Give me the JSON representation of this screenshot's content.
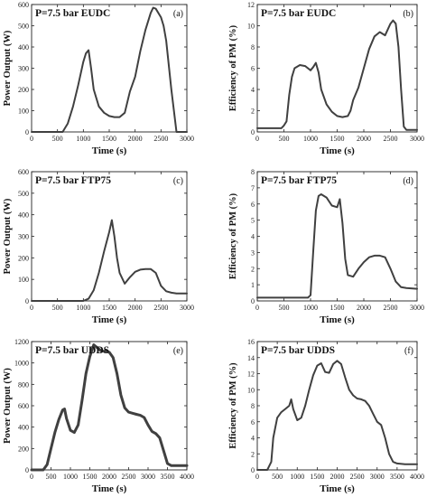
{
  "chart_data": [
    {
      "id": "a",
      "type": "line",
      "title": "P=7.5 bar EUDC",
      "panel_label": "(a)",
      "xlabel": "Time (s)",
      "ylabel": "Power Output (W)",
      "xlim": [
        0,
        3000
      ],
      "ylim": [
        0,
        600
      ],
      "xticks": [
        0,
        500,
        1000,
        1500,
        2000,
        2500,
        3000
      ],
      "yticks": [
        0,
        100,
        200,
        300,
        400,
        500,
        600
      ],
      "series": [
        {
          "x": [
            0,
            600,
            700,
            800,
            900,
            1000,
            1050,
            1100,
            1150,
            1200,
            1300,
            1400,
            1500,
            1600,
            1700,
            1800,
            1900,
            2000,
            2100,
            2200,
            2300,
            2350,
            2400,
            2500,
            2550,
            2600,
            2700,
            2800,
            3000
          ],
          "y": [
            0,
            0,
            40,
            120,
            220,
            330,
            370,
            385,
            300,
            200,
            120,
            90,
            75,
            70,
            70,
            90,
            190,
            260,
            380,
            480,
            560,
            585,
            580,
            540,
            500,
            430,
            200,
            0,
            0
          ]
        }
      ]
    },
    {
      "id": "b",
      "type": "line",
      "title": "P=7.5 bar EUDC",
      "panel_label": "(b)",
      "xlabel": "Time (s)",
      "ylabel": "Efficiency of PM (%)",
      "xlim": [
        0,
        3000
      ],
      "ylim": [
        0,
        12
      ],
      "xticks": [
        0,
        500,
        1000,
        1500,
        2000,
        2500,
        3000
      ],
      "yticks": [
        0,
        2,
        4,
        6,
        8,
        10,
        12
      ],
      "series": [
        {
          "x": [
            0,
            450,
            500,
            550,
            600,
            650,
            700,
            800,
            900,
            1000,
            1050,
            1100,
            1150,
            1200,
            1300,
            1400,
            1500,
            1600,
            1700,
            1750,
            1800,
            1900,
            2000,
            2100,
            2200,
            2300,
            2400,
            2500,
            2550,
            2600,
            2650,
            2700,
            2750,
            2800,
            3000
          ],
          "y": [
            0.35,
            0.35,
            0.6,
            1.0,
            3.5,
            5.2,
            6.0,
            6.3,
            6.2,
            5.8,
            6.1,
            6.5,
            5.6,
            4.0,
            2.6,
            1.9,
            1.5,
            1.4,
            1.5,
            2.0,
            3.0,
            4.2,
            6.0,
            7.8,
            9.0,
            9.4,
            9.1,
            10.2,
            10.5,
            10.2,
            8.0,
            4.0,
            0.5,
            0.2,
            0.2
          ]
        }
      ]
    },
    {
      "id": "c",
      "type": "line",
      "title": "P=7.5 bar FTP75",
      "panel_label": "(c)",
      "xlabel": "Time (s)",
      "ylabel": "Power Output (W)",
      "xlim": [
        0,
        3000
      ],
      "ylim": [
        0,
        600
      ],
      "xticks": [
        0,
        500,
        1000,
        1500,
        2000,
        2500,
        3000
      ],
      "yticks": [
        0,
        100,
        200,
        300,
        400,
        500,
        600
      ],
      "series": [
        {
          "x": [
            0,
            1000,
            1100,
            1200,
            1300,
            1400,
            1500,
            1550,
            1600,
            1650,
            1700,
            1800,
            1900,
            2000,
            2100,
            2200,
            2300,
            2400,
            2500,
            2600,
            2700,
            2800,
            3000
          ],
          "y": [
            0,
            0,
            10,
            50,
            130,
            230,
            320,
            375,
            300,
            200,
            130,
            80,
            110,
            135,
            145,
            148,
            148,
            130,
            70,
            45,
            38,
            35,
            35
          ]
        }
      ]
    },
    {
      "id": "d",
      "type": "line",
      "title": "P=7.5 bar FTP75",
      "panel_label": "(d)",
      "xlabel": "Time (s)",
      "ylabel": "Efficiency of PM (%)",
      "xlim": [
        0,
        3000
      ],
      "ylim": [
        0,
        8
      ],
      "xticks": [
        0,
        500,
        1000,
        1500,
        2000,
        2500,
        3000
      ],
      "yticks": [
        0,
        1,
        2,
        3,
        4,
        5,
        6,
        7,
        8
      ],
      "series": [
        {
          "x": [
            0,
            950,
            1000,
            1050,
            1100,
            1150,
            1200,
            1300,
            1400,
            1500,
            1550,
            1600,
            1650,
            1700,
            1800,
            1900,
            2000,
            2100,
            2200,
            2300,
            2400,
            2500,
            2600,
            2700,
            2800,
            3000
          ],
          "y": [
            0.2,
            0.2,
            0.35,
            3.0,
            5.6,
            6.5,
            6.6,
            6.4,
            5.9,
            5.8,
            6.3,
            4.8,
            2.6,
            1.6,
            1.5,
            2.0,
            2.4,
            2.7,
            2.8,
            2.8,
            2.7,
            2.0,
            1.2,
            0.85,
            0.8,
            0.75
          ]
        }
      ]
    },
    {
      "id": "e",
      "type": "line",
      "title": "P=7.5 bar UDDS",
      "panel_label": "(e)",
      "xlabel": "Time (s)",
      "ylabel": "Power Output (W)",
      "xlim": [
        0,
        4000
      ],
      "ylim": [
        0,
        1200
      ],
      "xticks": [
        0,
        500,
        1000,
        1500,
        2000,
        2500,
        3000,
        3500,
        4000
      ],
      "yticks": [
        0,
        200,
        400,
        600,
        800,
        1000,
        1200
      ],
      "series": [
        {
          "x": [
            0,
            300,
            400,
            500,
            600,
            700,
            800,
            850,
            900,
            1000,
            1100,
            1200,
            1300,
            1400,
            1500,
            1600,
            1700,
            1800,
            1900,
            2000,
            2100,
            2200,
            2300,
            2400,
            2500,
            2600,
            2700,
            2800,
            2900,
            3000,
            3100,
            3200,
            3300,
            3400,
            3500,
            3600,
            3800,
            4000
          ],
          "y": [
            0,
            0,
            50,
            200,
            350,
            470,
            560,
            570,
            480,
            370,
            350,
            420,
            650,
            900,
            1060,
            1170,
            1140,
            1110,
            1110,
            1100,
            1050,
            900,
            700,
            580,
            540,
            530,
            520,
            510,
            490,
            420,
            360,
            340,
            300,
            180,
            60,
            40,
            40,
            40
          ]
        }
      ]
    },
    {
      "id": "f",
      "type": "line",
      "title": "P=7.5 bar UDDS",
      "panel_label": "(f)",
      "xlabel": "Time (s)",
      "ylabel": "Efficiency of PM (%)",
      "xlim": [
        0,
        4000
      ],
      "ylim": [
        0,
        16
      ],
      "xticks": [
        0,
        500,
        1000,
        1500,
        2000,
        2500,
        3000,
        3500,
        4000
      ],
      "yticks": [
        0,
        2,
        4,
        6,
        8,
        10,
        12,
        14,
        16
      ],
      "series": [
        {
          "x": [
            0,
            250,
            300,
            350,
            400,
            500,
            600,
            700,
            800,
            850,
            900,
            1000,
            1100,
            1200,
            1300,
            1400,
            1500,
            1600,
            1700,
            1800,
            1900,
            2000,
            2100,
            2200,
            2300,
            2400,
            2500,
            2600,
            2700,
            2800,
            2900,
            3000,
            3100,
            3200,
            3300,
            3400,
            3500,
            3700,
            4000
          ],
          "y": [
            0,
            0,
            0.5,
            1.0,
            4.0,
            6.5,
            7.2,
            7.6,
            8.0,
            8.8,
            7.6,
            6.2,
            6.5,
            8.0,
            10.0,
            11.8,
            13.0,
            13.3,
            12.2,
            12.1,
            13.2,
            13.6,
            13.2,
            11.5,
            10.0,
            9.3,
            8.9,
            8.8,
            8.6,
            8.0,
            7.0,
            6.0,
            5.6,
            4.0,
            2.0,
            1.0,
            0.8,
            0.7,
            0.7
          ]
        }
      ]
    }
  ]
}
